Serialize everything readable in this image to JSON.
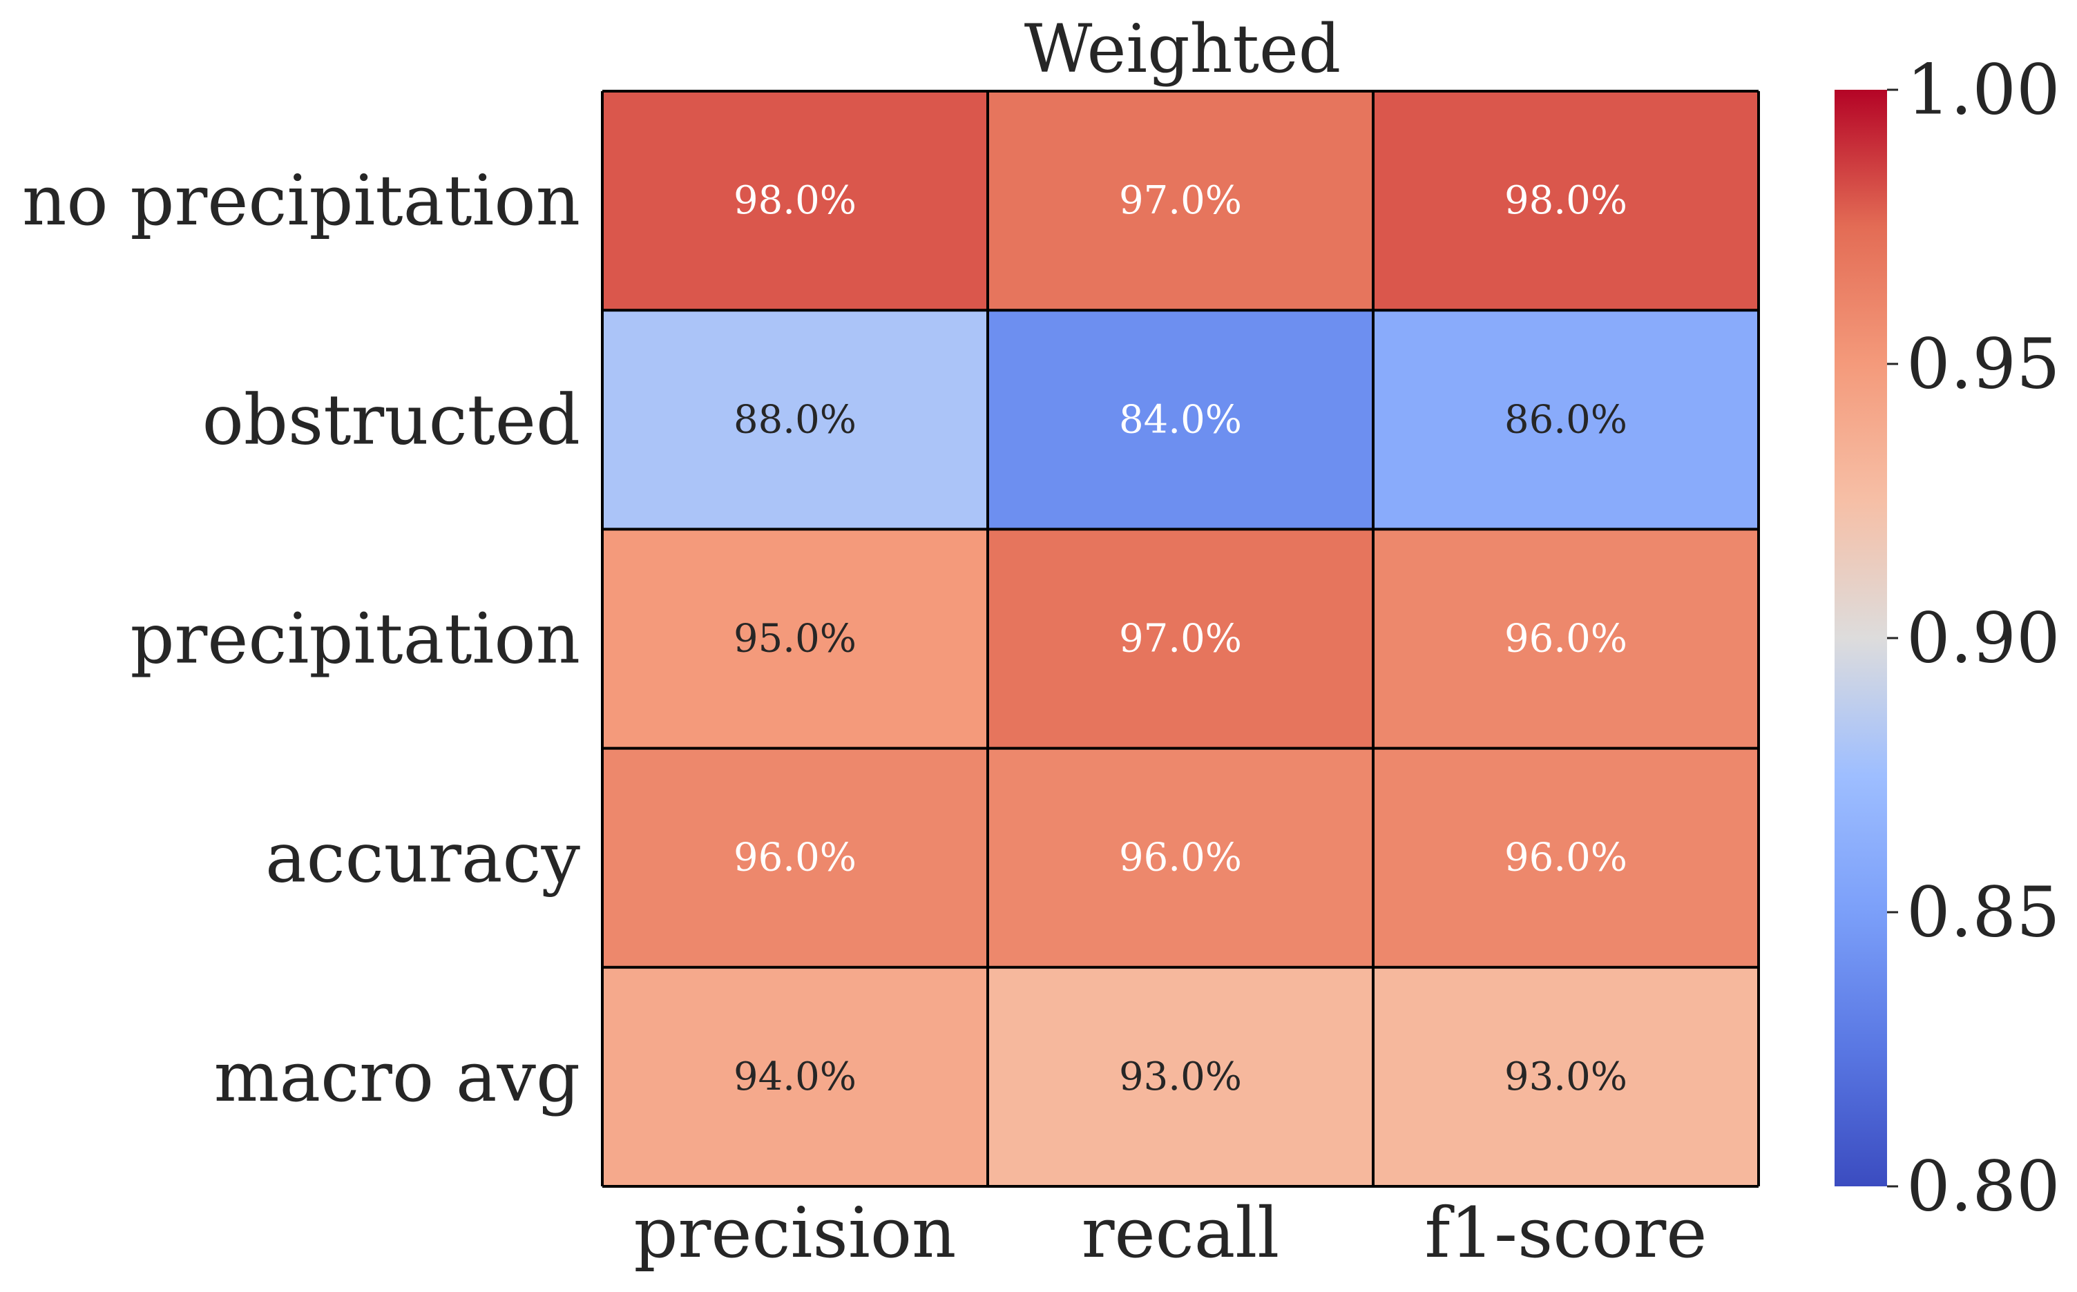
{
  "chart_data": {
    "type": "heatmap",
    "title": "Weighted",
    "rows": [
      "no precipitation",
      "obstructed",
      "precipitation",
      "accuracy",
      "macro avg"
    ],
    "columns": [
      "precision",
      "recall",
      "f1-score"
    ],
    "values": [
      [
        0.98,
        0.97,
        0.98
      ],
      [
        0.88,
        0.84,
        0.86
      ],
      [
        0.95,
        0.97,
        0.96
      ],
      [
        0.96,
        0.96,
        0.96
      ],
      [
        0.94,
        0.93,
        0.93
      ]
    ],
    "cell_labels": [
      [
        "98.0%",
        "97.0%",
        "98.0%"
      ],
      [
        "88.0%",
        "84.0%",
        "86.0%"
      ],
      [
        "95.0%",
        "97.0%",
        "96.0%"
      ],
      [
        "96.0%",
        "96.0%",
        "96.0%"
      ],
      [
        "94.0%",
        "93.0%",
        "93.0%"
      ]
    ],
    "colormap": "coolwarm",
    "vmin": 0.8,
    "vmax": 1.0,
    "colorbar": {
      "ticks": [
        0.8,
        0.85,
        0.9,
        0.95,
        1.0
      ],
      "tick_labels": [
        "0.80",
        "0.85",
        "0.90",
        "0.95",
        "1.00"
      ]
    }
  }
}
